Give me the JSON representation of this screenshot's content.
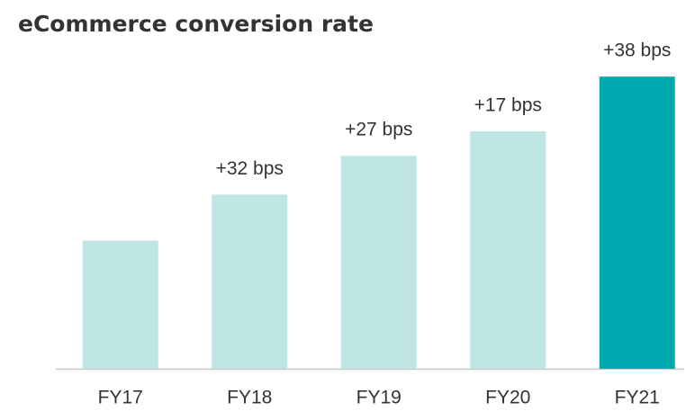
{
  "chart_data": {
    "type": "bar",
    "title": "eCommerce conversion rate",
    "categories": [
      "FY17",
      "FY18",
      "FY19",
      "FY20",
      "FY21"
    ],
    "base": 89,
    "changes": [
      null,
      32,
      27,
      17,
      38
    ],
    "change_labels": [
      null,
      "+32 bps",
      "+27 bps",
      "+17 bps",
      "+38 bps"
    ],
    "colors": [
      "#c0e6e4",
      "#c0e6e4",
      "#c0e6e4",
      "#c0e6e4",
      "#00a8b0"
    ],
    "ylim": [
      0,
      250
    ]
  }
}
